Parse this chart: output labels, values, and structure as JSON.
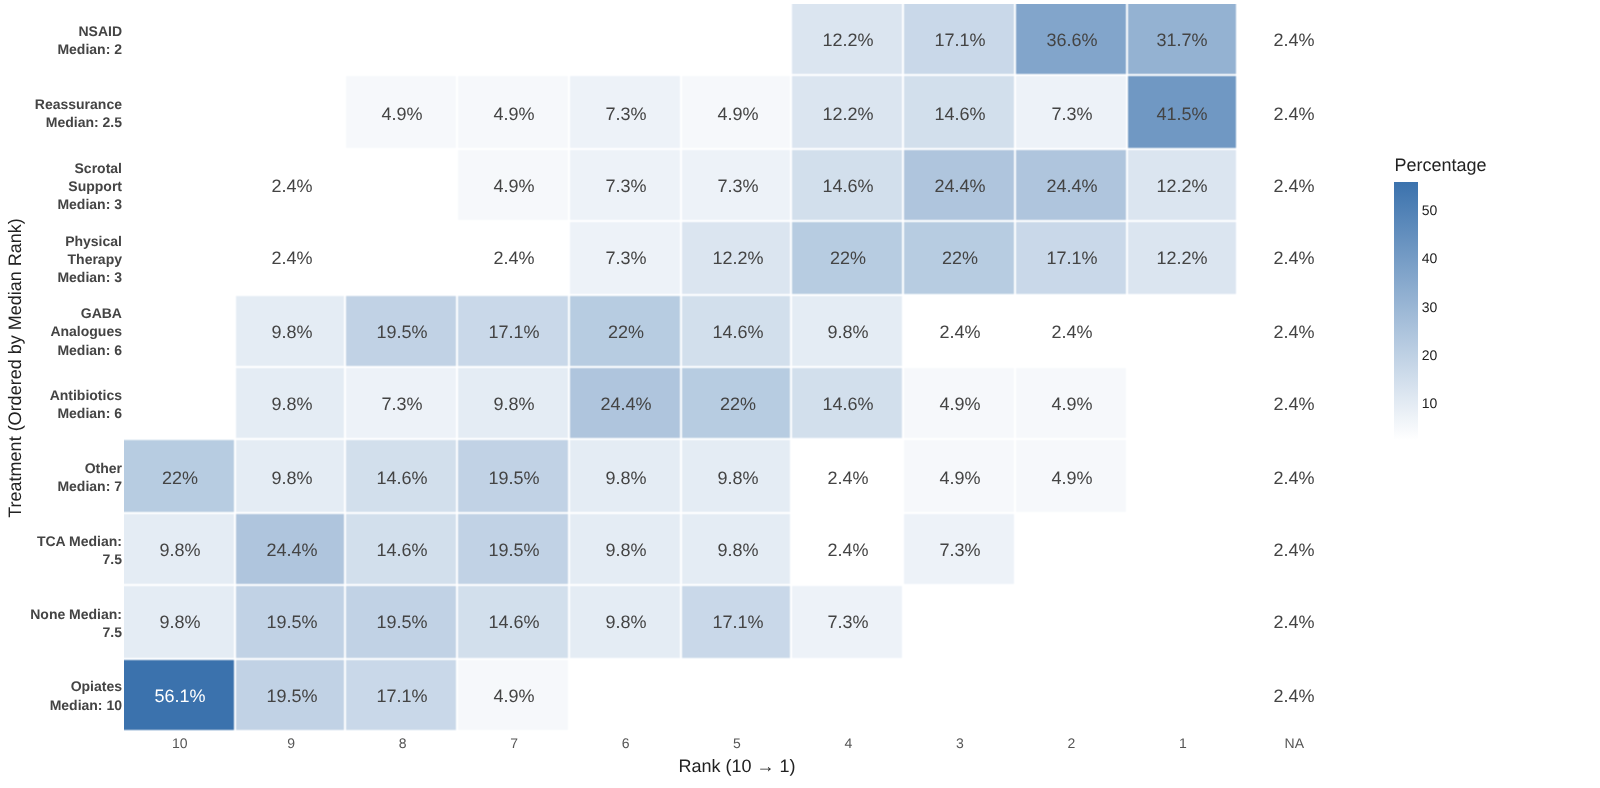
{
  "chart_data": {
    "type": "heatmap",
    "xlabel": "Rank (10 → 1)",
    "ylabel": "Treatment (Ordered by Median Rank)",
    "clabel": "Percentage",
    "categories": [
      "10",
      "9",
      "8",
      "7",
      "6",
      "5",
      "4",
      "3",
      "2",
      "1",
      "NA"
    ],
    "y_categories": [
      "NSAID\nMedian: 2",
      "Reassurance\nMedian: 2.5",
      "Scrotal\nSupport\nMedian: 3",
      "Physical\nTherapy\nMedian: 3",
      "GABA\nAnalogues\nMedian: 6",
      "Antibiotics\nMedian: 6",
      "Other\nMedian: 7",
      "TCA Median:\n7.5",
      "None Median:\n7.5",
      "Opiates\nMedian: 10"
    ],
    "cells": [
      [
        null,
        null,
        null,
        null,
        null,
        null,
        12.2,
        17.1,
        36.6,
        31.7,
        2.4
      ],
      [
        null,
        null,
        4.9,
        4.9,
        7.3,
        4.9,
        12.2,
        14.6,
        7.3,
        41.5,
        2.4
      ],
      [
        null,
        2.4,
        null,
        4.9,
        7.3,
        7.3,
        14.6,
        24.4,
        24.4,
        12.2,
        2.4
      ],
      [
        null,
        2.4,
        null,
        2.4,
        7.3,
        12.2,
        22,
        22,
        17.1,
        12.2,
        2.4
      ],
      [
        null,
        9.8,
        19.5,
        17.1,
        22,
        14.6,
        9.8,
        2.4,
        2.4,
        null,
        2.4
      ],
      [
        null,
        9.8,
        7.3,
        9.8,
        24.4,
        22,
        14.6,
        4.9,
        4.9,
        null,
        2.4
      ],
      [
        22,
        9.8,
        14.6,
        19.5,
        9.8,
        9.8,
        2.4,
        4.9,
        4.9,
        null,
        2.4
      ],
      [
        9.8,
        24.4,
        14.6,
        19.5,
        9.8,
        9.8,
        2.4,
        7.3,
        null,
        null,
        2.4
      ],
      [
        9.8,
        19.5,
        19.5,
        14.6,
        9.8,
        17.1,
        7.3,
        null,
        null,
        null,
        2.4
      ],
      [
        56.1,
        19.5,
        17.1,
        4.9,
        null,
        null,
        null,
        null,
        null,
        null,
        2.4
      ]
    ],
    "cell_labels": [
      [
        null,
        null,
        null,
        null,
        null,
        null,
        "12.2%",
        "17.1%",
        "36.6%",
        "31.7%",
        "2.4%"
      ],
      [
        null,
        null,
        "4.9%",
        "4.9%",
        "7.3%",
        "4.9%",
        "12.2%",
        "14.6%",
        "7.3%",
        "41.5%",
        "2.4%"
      ],
      [
        null,
        "2.4%",
        null,
        "4.9%",
        "7.3%",
        "7.3%",
        "14.6%",
        "24.4%",
        "24.4%",
        "12.2%",
        "2.4%"
      ],
      [
        null,
        "2.4%",
        null,
        "2.4%",
        "7.3%",
        "12.2%",
        "22%",
        "22%",
        "17.1%",
        "12.2%",
        "2.4%"
      ],
      [
        null,
        "9.8%",
        "19.5%",
        "17.1%",
        "22%",
        "14.6%",
        "9.8%",
        "2.4%",
        "2.4%",
        null,
        "2.4%"
      ],
      [
        null,
        "9.8%",
        "7.3%",
        "9.8%",
        "24.4%",
        "22%",
        "14.6%",
        "4.9%",
        "4.9%",
        null,
        "2.4%"
      ],
      [
        "22%",
        "9.8%",
        "14.6%",
        "19.5%",
        "9.8%",
        "9.8%",
        "2.4%",
        "4.9%",
        "4.9%",
        null,
        "2.4%"
      ],
      [
        "9.8%",
        "24.4%",
        "14.6%",
        "19.5%",
        "9.8%",
        "9.8%",
        "2.4%",
        "7.3%",
        null,
        null,
        "2.4%"
      ],
      [
        "9.8%",
        "19.5%",
        "19.5%",
        "14.6%",
        "9.8%",
        "17.1%",
        "7.3%",
        null,
        null,
        null,
        "2.4%"
      ],
      [
        "56.1%",
        "19.5%",
        "17.1%",
        "4.9%",
        null,
        null,
        null,
        null,
        null,
        null,
        "2.4%"
      ]
    ],
    "clim": [
      2.4,
      56.1
    ],
    "cticks": [
      10,
      20,
      30,
      40,
      50
    ],
    "grid": false
  }
}
